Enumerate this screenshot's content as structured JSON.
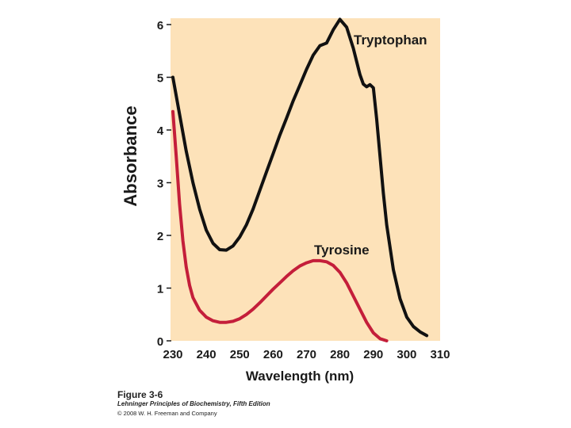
{
  "chart_data": {
    "type": "line",
    "xlabel": "Wavelength (nm)",
    "ylabel": "Absorbance",
    "xlim": [
      230,
      310
    ],
    "ylim": [
      0,
      6
    ],
    "x_ticks": [
      "230",
      "240",
      "250",
      "260",
      "270",
      "280",
      "290",
      "300",
      "310"
    ],
    "y_ticks": [
      "0",
      "1",
      "2",
      "3",
      "4",
      "5",
      "6"
    ],
    "grid": false,
    "background": "#fde2b9",
    "series": [
      {
        "name": "Tryptophan",
        "color": "#111111",
        "x": [
          230,
          232,
          234,
          236,
          238,
          240,
          242,
          244,
          246,
          248,
          250,
          252,
          254,
          256,
          258,
          260,
          262,
          264,
          266,
          268,
          270,
          272,
          274,
          276,
          278,
          280,
          282,
          284,
          286,
          287,
          288,
          289,
          290,
          291,
          292,
          293,
          294,
          296,
          298,
          300,
          302,
          304,
          306
        ],
        "y": [
          5.0,
          4.3,
          3.6,
          3.0,
          2.5,
          2.1,
          1.85,
          1.73,
          1.72,
          1.8,
          1.97,
          2.2,
          2.5,
          2.85,
          3.2,
          3.55,
          3.9,
          4.22,
          4.55,
          4.85,
          5.15,
          5.42,
          5.6,
          5.65,
          5.9,
          6.1,
          5.95,
          5.55,
          5.05,
          4.87,
          4.82,
          4.86,
          4.8,
          4.2,
          3.5,
          2.8,
          2.2,
          1.35,
          0.8,
          0.45,
          0.27,
          0.17,
          0.1
        ]
      },
      {
        "name": "Tyrosine",
        "color": "#c41e3a",
        "x": [
          230,
          231,
          232,
          233,
          234,
          235,
          236,
          238,
          240,
          242,
          244,
          246,
          248,
          250,
          252,
          254,
          256,
          258,
          260,
          262,
          264,
          266,
          268,
          270,
          272,
          274,
          276,
          278,
          280,
          282,
          284,
          286,
          288,
          290,
          292,
          294
        ],
        "y": [
          4.35,
          3.5,
          2.6,
          1.9,
          1.4,
          1.05,
          0.82,
          0.58,
          0.45,
          0.38,
          0.35,
          0.35,
          0.37,
          0.42,
          0.5,
          0.6,
          0.72,
          0.85,
          0.98,
          1.1,
          1.22,
          1.33,
          1.42,
          1.48,
          1.52,
          1.52,
          1.5,
          1.43,
          1.3,
          1.1,
          0.85,
          0.6,
          0.35,
          0.15,
          0.04,
          0.0
        ]
      }
    ]
  },
  "figure": {
    "label": "Figure 3-6",
    "book": "Lehninger Principles of Biochemistry, Fifth Edition",
    "copyright": "© 2008 W. H. Freeman and Company"
  }
}
